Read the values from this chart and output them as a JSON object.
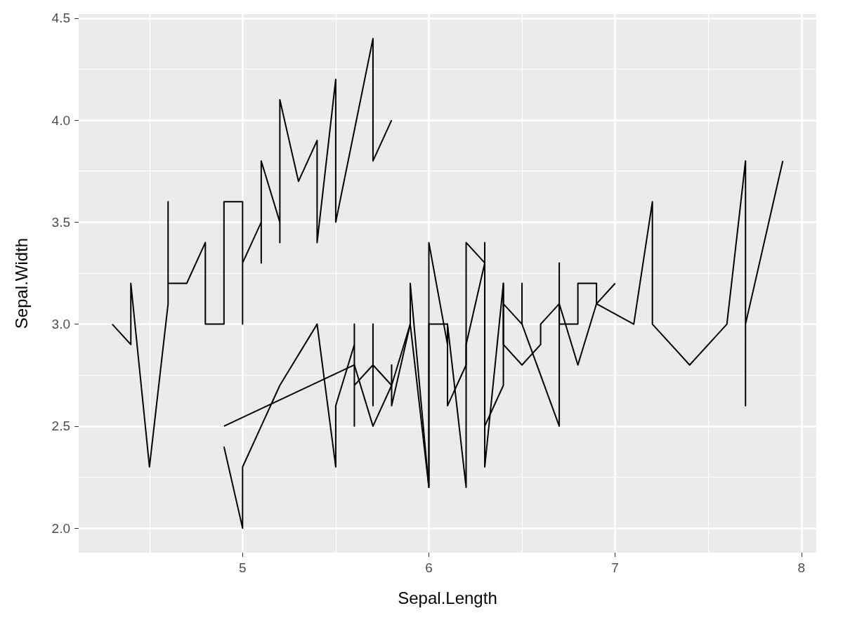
{
  "chart_data": {
    "type": "line",
    "xlabel": "Sepal.Length",
    "ylabel": "Sepal.Width",
    "xlim": [
      4.12,
      8.08
    ],
    "xticks": [
      5,
      6,
      7,
      8
    ],
    "ylim": [
      1.88,
      4.52
    ],
    "yticks": [
      {
        "value": 2,
        "label": "2.0"
      },
      {
        "value": 2.5,
        "label": "2.5"
      },
      {
        "value": 3,
        "label": "3.0"
      },
      {
        "value": 3.5,
        "label": "3.5"
      },
      {
        "value": 4,
        "label": "4.0"
      },
      {
        "value": 4.5,
        "label": "4.5"
      }
    ],
    "grid": true,
    "marker": "none",
    "line_style": "solid",
    "series": [
      {
        "color": "#000000",
        "x": [
          4.3,
          4.4,
          4.4,
          4.4,
          4.5,
          4.6,
          4.6,
          4.6,
          4.6,
          4.7,
          4.7,
          4.8,
          4.8,
          4.8,
          4.8,
          4.8,
          4.9,
          4.9,
          4.9,
          4.9,
          5.0,
          5.0,
          5.0,
          5.0,
          5.0,
          5.0,
          5.0,
          5.0,
          5.1,
          5.1,
          5.1,
          5.1,
          5.1,
          5.1,
          5.1,
          5.1,
          5.2,
          5.2,
          5.2,
          5.3,
          5.4,
          5.4,
          5.4,
          5.4,
          5.4,
          5.5,
          5.5,
          5.7,
          5.7,
          5.8
        ],
        "values": [
          3.0,
          2.9,
          3.0,
          3.2,
          2.3,
          3.1,
          3.4,
          3.6,
          3.2,
          3.2,
          3.2,
          3.4,
          3.0,
          3.4,
          3.1,
          3.0,
          3.0,
          3.1,
          3.1,
          3.6,
          3.6,
          3.4,
          3.0,
          3.4,
          3.2,
          3.5,
          3.5,
          3.3,
          3.5,
          3.5,
          3.8,
          3.7,
          3.3,
          3.4,
          3.8,
          3.8,
          3.5,
          3.4,
          4.1,
          3.7,
          3.9,
          3.7,
          3.9,
          3.4,
          3.4,
          4.2,
          3.5,
          4.4,
          3.8,
          4.0
        ]
      },
      {
        "color": "#000000",
        "x": [
          4.9,
          5.0,
          5.0,
          5.1,
          5.2,
          5.4,
          5.5,
          5.5,
          5.5,
          5.5,
          5.5,
          5.6,
          5.6,
          5.6,
          5.6,
          5.6,
          5.7,
          5.7,
          5.7,
          5.7,
          5.7,
          5.8,
          5.8,
          5.8,
          5.9,
          5.9,
          6.0,
          6.0,
          6.0,
          6.0,
          6.1,
          6.1,
          6.1,
          6.1,
          6.2,
          6.2,
          6.3,
          6.3,
          6.3,
          6.4,
          6.4,
          6.5,
          6.6,
          6.6,
          6.7,
          6.7,
          6.7,
          6.8,
          6.9,
          7.0
        ],
        "values": [
          2.4,
          2.0,
          2.3,
          2.5,
          2.7,
          3.0,
          2.3,
          2.4,
          2.4,
          2.5,
          2.6,
          2.9,
          3.0,
          2.5,
          3.0,
          2.7,
          2.8,
          2.6,
          3.0,
          2.9,
          2.8,
          2.7,
          2.7,
          2.6,
          3.0,
          3.2,
          2.2,
          2.9,
          2.7,
          3.4,
          2.9,
          2.8,
          2.8,
          3.0,
          2.2,
          2.9,
          3.3,
          2.5,
          2.3,
          3.2,
          2.9,
          2.8,
          2.9,
          3.0,
          3.1,
          3.0,
          3.1,
          2.8,
          3.1,
          3.2
        ]
      },
      {
        "color": "#000000",
        "x": [
          4.9,
          5.6,
          5.7,
          5.8,
          5.8,
          5.8,
          5.9,
          6.0,
          6.0,
          6.1,
          6.1,
          6.2,
          6.2,
          6.3,
          6.3,
          6.3,
          6.3,
          6.3,
          6.3,
          6.4,
          6.4,
          6.4,
          6.4,
          6.4,
          6.5,
          6.5,
          6.5,
          6.5,
          6.7,
          6.7,
          6.7,
          6.7,
          6.7,
          6.8,
          6.8,
          6.9,
          6.9,
          6.9,
          7.1,
          7.2,
          7.2,
          7.2,
          7.3,
          7.4,
          7.6,
          7.7,
          7.7,
          7.7,
          7.7,
          7.9
        ],
        "values": [
          2.5,
          2.8,
          2.5,
          2.7,
          2.8,
          2.7,
          3.0,
          2.2,
          3.0,
          3.0,
          2.6,
          2.8,
          3.4,
          3.3,
          2.9,
          2.7,
          2.8,
          3.4,
          2.5,
          2.7,
          3.2,
          2.8,
          2.8,
          3.1,
          3.0,
          3.2,
          3.0,
          3.0,
          2.5,
          3.3,
          3.1,
          3.3,
          3.0,
          3.0,
          3.2,
          3.2,
          3.1,
          3.1,
          3.0,
          3.6,
          3.2,
          3.0,
          2.9,
          2.8,
          3.0,
          3.8,
          2.6,
          2.8,
          3.0,
          3.8
        ]
      }
    ]
  }
}
